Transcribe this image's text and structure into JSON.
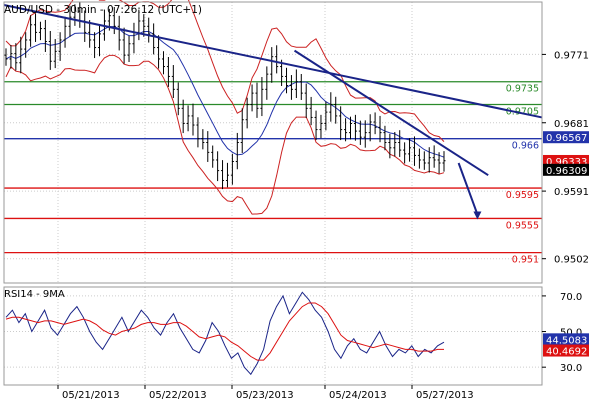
{
  "chart_data": [
    {
      "type": "line",
      "title": "AUD/USD - 30min - 07:26:12 (UTC+1)",
      "ylim": [
        0.947,
        0.984
      ],
      "yticks": [
        {
          "value": 0.9771,
          "label": "0.9771"
        },
        {
          "value": 0.9681,
          "label": "0.9681"
        },
        {
          "value": 0.9591,
          "label": "0.9591"
        },
        {
          "value": 0.9502,
          "label": "0.9502"
        }
      ],
      "xticks": [
        "05/21/2013",
        "05/22/2013",
        "05/23/2013",
        "05/24/2013",
        "05/27/2013"
      ],
      "grid": true,
      "levels": [
        {
          "value": 0.9735,
          "label": "0.9735",
          "color": "#2a8a2a"
        },
        {
          "value": 0.9705,
          "label": "0.9705",
          "color": "#2a8a2a"
        },
        {
          "value": 0.966,
          "label": "0.966",
          "color": "#2233aa"
        },
        {
          "value": 0.9595,
          "label": "0.9595",
          "color": "#dd1111"
        },
        {
          "value": 0.9555,
          "label": "0.9555",
          "color": "#dd1111"
        },
        {
          "value": 0.951,
          "label": "0.951",
          "color": "#dd1111"
        }
      ],
      "price_tags": [
        {
          "value": 0.96567,
          "label": "0.96567",
          "bg": "#2233aa",
          "fg": "#ffffff"
        },
        {
          "value": 0.96333,
          "label": "0.96333",
          "bg": "#dd1111",
          "fg": "#ffffff"
        },
        {
          "value": 0.96309,
          "label": "0.96309",
          "bg": "#000000",
          "fg": "#ffffff"
        }
      ],
      "trendlines": [
        {
          "from": [
            0,
            0.9836
          ],
          "to": [
            1.0,
            0.9688
          ],
          "color": "#1a2488"
        },
        {
          "from": [
            0.54,
            0.9776
          ],
          "to": [
            0.9,
            0.9612
          ],
          "color": "#1a2488"
        }
      ],
      "projection_arrow": {
        "from": [
          0.845,
          0.9628
        ],
        "to": [
          0.88,
          0.9555
        ],
        "color": "#1a2488"
      },
      "closes": [
        0.9765,
        0.9772,
        0.976,
        0.9778,
        0.979,
        0.981,
        0.98,
        0.9805,
        0.9788,
        0.9762,
        0.9775,
        0.979,
        0.9808,
        0.982,
        0.9828,
        0.9815,
        0.98,
        0.979,
        0.978,
        0.9798,
        0.9815,
        0.9822,
        0.9808,
        0.979,
        0.977,
        0.9785,
        0.98,
        0.9815,
        0.9808,
        0.9798,
        0.978,
        0.9765,
        0.9755,
        0.9742,
        0.9725,
        0.97,
        0.968,
        0.969,
        0.9678,
        0.966,
        0.9655,
        0.9642,
        0.9632,
        0.9618,
        0.9605,
        0.9612,
        0.963,
        0.9655,
        0.9685,
        0.9705,
        0.972,
        0.97,
        0.9725,
        0.9745,
        0.9768,
        0.9755,
        0.9742,
        0.973,
        0.9725,
        0.9735,
        0.972,
        0.97,
        0.9688,
        0.9672,
        0.968,
        0.9695,
        0.9705,
        0.969,
        0.9672,
        0.9668,
        0.968,
        0.967,
        0.9662,
        0.9668,
        0.9682,
        0.9675,
        0.9668,
        0.9655,
        0.9648,
        0.9655,
        0.9645,
        0.964,
        0.9648,
        0.9638,
        0.9632,
        0.9628,
        0.9635,
        0.9632,
        0.9628,
        0.9631
      ]
    },
    {
      "type": "line",
      "title": "RSI14 - 9MA",
      "ylim": [
        20,
        75
      ],
      "yticks": [
        {
          "value": 70,
          "label": "70.0"
        },
        {
          "value": 50,
          "label": "50.0"
        },
        {
          "value": 30,
          "label": "30.0"
        }
      ],
      "series": [
        {
          "color": "#1a2488",
          "values": [
            58,
            62,
            55,
            60,
            50,
            56,
            62,
            52,
            48,
            54,
            60,
            64,
            58,
            50,
            44,
            40,
            46,
            52,
            58,
            50,
            56,
            62,
            58,
            52,
            48,
            55,
            60,
            52,
            46,
            40,
            38,
            45,
            55,
            50,
            42,
            35,
            38,
            30,
            26,
            32,
            40,
            56,
            64,
            70,
            60,
            66,
            72,
            68,
            62,
            58,
            50,
            40,
            35,
            42,
            46,
            40,
            38,
            44,
            50,
            42,
            36,
            40,
            38,
            42,
            36,
            40,
            38,
            42,
            44
          ]
        },
        {
          "color": "#dd1111",
          "values": [
            57,
            58,
            58,
            57,
            56,
            55,
            56,
            56,
            55,
            54,
            55,
            56,
            57,
            56,
            54,
            51,
            49,
            48,
            50,
            51,
            52,
            54,
            55,
            55,
            54,
            54,
            55,
            55,
            53,
            50,
            47,
            46,
            47,
            48,
            47,
            44,
            42,
            39,
            36,
            34,
            34,
            38,
            44,
            50,
            56,
            60,
            64,
            66,
            66,
            64,
            60,
            54,
            48,
            45,
            44,
            43,
            42,
            41,
            42,
            43,
            42,
            41,
            40,
            40,
            39,
            39,
            39,
            40,
            40
          ]
        }
      ],
      "price_tags": [
        {
          "value": 44.5083,
          "label": "44.5083",
          "bg": "#2233aa",
          "fg": "#ffffff"
        },
        {
          "value": 40.4692,
          "label": "40.4692",
          "bg": "#dd1111",
          "fg": "#ffffff"
        }
      ]
    }
  ],
  "colors": {
    "upper_pane_bg": "#ffffff",
    "grid": "#cccccc",
    "candle": "#000000",
    "bollinger": "#cc2222",
    "ma": "#2233aa"
  }
}
